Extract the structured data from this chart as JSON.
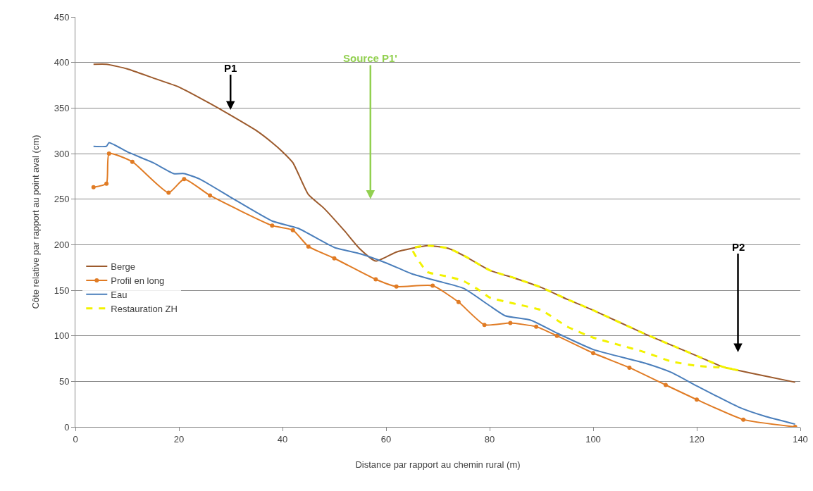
{
  "chart_data": {
    "type": "line",
    "xlabel": "Distance par rapport au chemin rural (m)",
    "ylabel": "Côte relative par rapport au point aval (cm)",
    "xlim": [
      0,
      140
    ],
    "xticks": [
      0,
      20,
      40,
      60,
      80,
      100,
      120,
      140
    ],
    "ylim": [
      0,
      450
    ],
    "yticks": [
      0,
      50,
      100,
      150,
      200,
      250,
      300,
      350,
      400,
      450
    ],
    "grid": "y",
    "legend": "left",
    "annotations": [
      "P1",
      "Source P1'",
      "P2"
    ],
    "series": [
      {
        "name": "Berge",
        "color": "#9c5a2c",
        "marker": "none",
        "line_style": "solid",
        "x": [
          3.5,
          6,
          10,
          15,
          20,
          26,
          30,
          35,
          38,
          40,
          42,
          45,
          48,
          52,
          55,
          58,
          62,
          65,
          68,
          72,
          75,
          80,
          85,
          90,
          95,
          100,
          105,
          110,
          115,
          120,
          125,
          128,
          133,
          139
        ],
        "values": [
          398,
          398,
          393,
          383,
          373,
          355,
          342,
          325,
          312,
          302,
          290,
          255,
          240,
          215,
          195,
          182,
          192,
          196,
          199,
          196,
          188,
          172,
          163,
          153,
          140,
          128,
          115,
          102,
          90,
          78,
          66,
          62,
          56,
          49
        ]
      },
      {
        "name": "Profil en long",
        "color": "#e07b24",
        "marker": "circle",
        "line_style": "solid",
        "x": [
          3.5,
          6,
          6.5,
          11,
          18,
          21,
          26,
          38,
          42,
          45,
          50,
          58,
          62,
          69,
          74,
          79,
          84,
          89,
          93,
          100,
          107,
          114,
          120,
          129,
          139
        ],
        "values": [
          263,
          267,
          300,
          291,
          257,
          272,
          254,
          221,
          216,
          198,
          185,
          162,
          154,
          155,
          137,
          112,
          114,
          110,
          100,
          81,
          65,
          46,
          30,
          8,
          0
        ]
      },
      {
        "name": "Eau",
        "color": "#4a7ebb",
        "marker": "none",
        "line_style": "solid",
        "x": [
          3.5,
          6,
          6.5,
          10,
          15,
          19,
          21,
          24,
          30,
          38,
          43,
          50,
          55,
          60,
          65,
          70,
          75,
          80,
          83,
          88,
          93,
          100,
          110,
          115,
          120,
          128,
          133,
          139
        ],
        "values": [
          308,
          308,
          312,
          302,
          290,
          278,
          278,
          272,
          252,
          226,
          218,
          197,
          190,
          180,
          168,
          160,
          152,
          133,
          122,
          117,
          103,
          85,
          70,
          60,
          45,
          22,
          12,
          3
        ]
      },
      {
        "name": "Restauration ZH",
        "color": "#f2f200",
        "marker": "none",
        "line_style": "dashed",
        "x": [
          128,
          125,
          120,
          115,
          110,
          105,
          100,
          95,
          90,
          85,
          80,
          75,
          72,
          68,
          65,
          66,
          68,
          72,
          75,
          78,
          80,
          85,
          90,
          95,
          100,
          105,
          110,
          115,
          120,
          125,
          128
        ],
        "values": [
          62,
          66,
          78,
          90,
          102,
          115,
          128,
          140,
          153,
          163,
          172,
          188,
          196,
          199,
          196,
          185,
          170,
          165,
          160,
          150,
          142,
          135,
          128,
          110,
          98,
          90,
          82,
          72,
          67,
          65,
          63
        ]
      }
    ]
  }
}
